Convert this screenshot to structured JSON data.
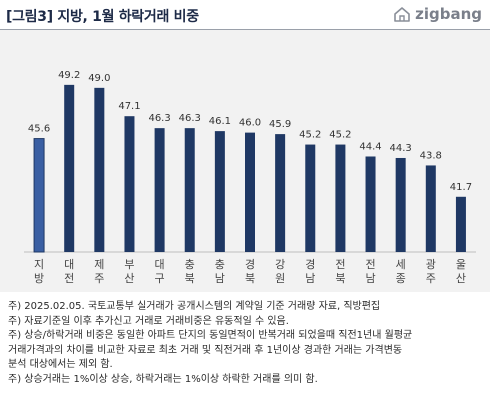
{
  "header": {
    "title": "[그림3] 지방, 1월 하락거래 비중",
    "logo_text": "zigbang",
    "logo_icon": "house-outline-icon"
  },
  "colors": {
    "bar_fill": "#1f3864",
    "highlight_fill": "#3a5fa3",
    "highlight_stroke": "#1f3864",
    "chart_bg": "#f2f2f2"
  },
  "chart_data": {
    "type": "bar",
    "title": "",
    "xlabel": "",
    "ylabel": "",
    "ylim": [
      38,
      51
    ],
    "grid": false,
    "legend": "none",
    "categories": [
      "지방",
      "대전",
      "제주",
      "부산",
      "대구",
      "충북",
      "충남",
      "경북",
      "강원",
      "경남",
      "전북",
      "전남",
      "세종",
      "광주",
      "울산"
    ],
    "values": [
      45.6,
      49.2,
      49.0,
      47.1,
      46.3,
      46.3,
      46.1,
      46.0,
      45.9,
      45.2,
      45.2,
      44.4,
      44.3,
      43.8,
      41.7
    ],
    "value_labels": [
      "45.6",
      "49.2",
      "49.0",
      "47.1",
      "46.3",
      "46.3",
      "46.1",
      "46.0",
      "45.9",
      "45.2",
      "45.2",
      "44.4",
      "44.3",
      "43.8",
      "41.7"
    ],
    "highlight_category": "지방"
  },
  "notes": [
    "주) 2025.02.05. 국토교통부 실거래가 공개시스템의 계약일 기준 거래량  자료, 직방편집",
    "주) 자료기준일 이후 추가신고 거래로 거래비중은 유동적일 수 있음.",
    "주) 상승/하락거래 비중은 동일한 아파트 단지의 동일면적이 반복거래 되었을때 직전1년내 월평균",
    "거래가격과의 차이를 비교한 자료로 최초 거래 및 직전거래 후 1년이상 경과한 거래는 가격변동",
    "분석 대상에서는 제외 함.",
    "주) 상승거래는 1%이상 상승, 하락거래는 1%이상 하락한 거래를 의미 함."
  ]
}
